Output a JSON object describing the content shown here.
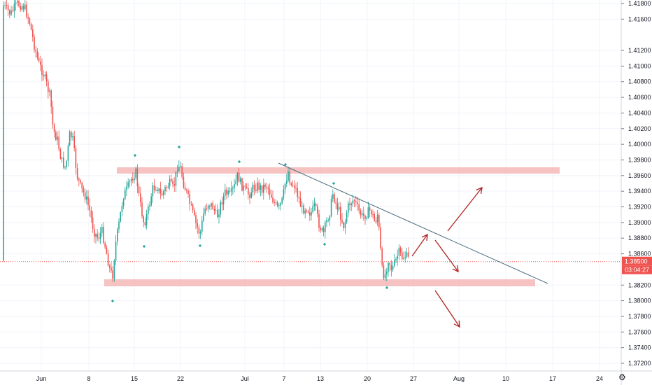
{
  "chart_data": {
    "type": "candlestick",
    "y_axis": {
      "position": "right",
      "ticks": [
        "1.41800",
        "1.41600",
        "1.41200",
        "1.41000",
        "1.40800",
        "1.40600",
        "1.40400",
        "1.40200",
        "1.40000",
        "1.39800",
        "1.39600",
        "1.39400",
        "1.39200",
        "1.39000",
        "1.38800",
        "1.38600",
        "1.38200",
        "1.38000",
        "1.37800",
        "1.37600",
        "1.37400",
        "1.37200"
      ],
      "ylim": [
        1.3712,
        1.4188
      ]
    },
    "x_axis": {
      "ticks": [
        "Jun",
        "8",
        "15",
        "22",
        "Jul",
        "7",
        "13",
        "20",
        "27",
        "Aug",
        "10",
        "17",
        "24"
      ]
    },
    "current_price": {
      "value": "1.38500",
      "countdown": "03:04:27"
    },
    "zones": [
      {
        "name": "resistance-zone",
        "from": "1.39650",
        "to": "1.39720"
      },
      {
        "name": "support-zone",
        "from": "1.38200",
        "to": "1.38280"
      }
    ],
    "trendline": {
      "from_price": 1.3976,
      "to_price": 1.3823
    },
    "colors": {
      "up": "#26a69a",
      "down": "#ef5350",
      "zone": "#f4b7b7",
      "trendline": "#4a6b7c",
      "arrow": "#b22222",
      "price_line": "#ef5350",
      "grid": "#f0f3fa"
    },
    "arrows": [
      "up-breakout",
      "down-pullback",
      "up-bounce",
      "down-breakdown"
    ]
  }
}
